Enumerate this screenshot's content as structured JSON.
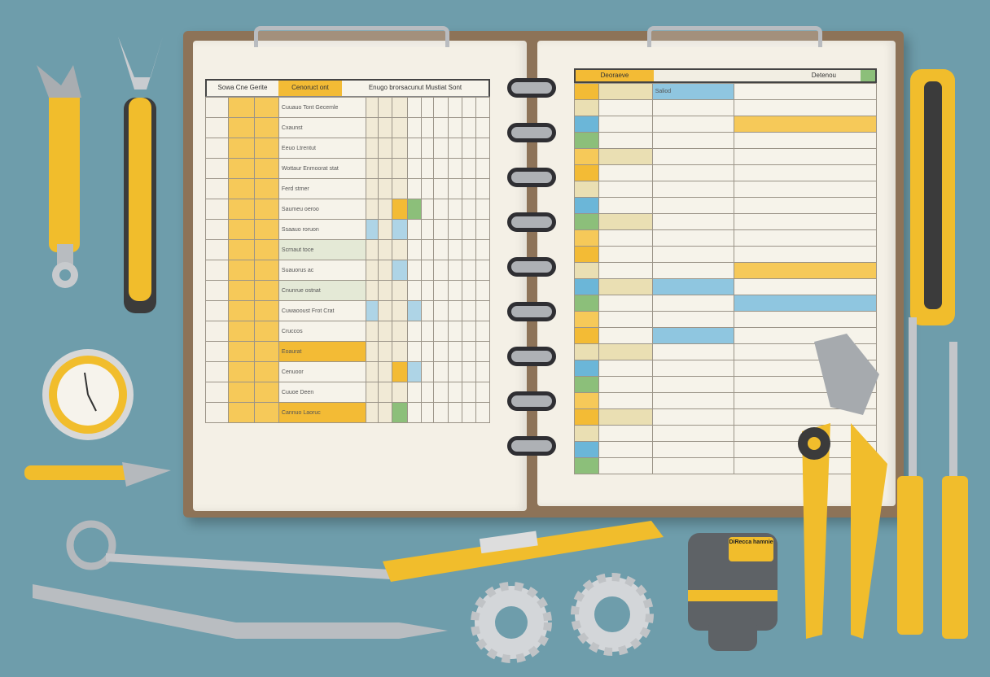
{
  "left_sheet": {
    "headers": [
      "Sowa Cne Gerite",
      "Cenoruct ont",
      "Enugo brorsacunut Mustiat Sont"
    ],
    "row_labels": [
      "Cuuauo Tont Gecemle",
      "Cxaunst",
      "Eeuo Ltrentut",
      "Wottaur Enmoorat stat",
      "Ferd stmer",
      "Saumeu oeroo",
      "Ssaauo roruon",
      "Scrnaut toce",
      "Suauorus ac",
      "Cnunrue ostnat",
      "Cuwaooust Frot Crat",
      "Cruccos",
      "Eoaurat",
      "Cenuoor",
      "Cuuoe Deen",
      "Cannuo Laoruc"
    ]
  },
  "right_sheet": {
    "headers": [
      "Deoraeve",
      "Detenou"
    ],
    "sub_label": "Saliod"
  },
  "tape_label": "DiRecca hamnie",
  "colors": {
    "background": "#6e9dab",
    "accent_yellow": "#f3bb35",
    "page": "#f4f0e6",
    "binder": "#8d7358",
    "blue": "#6bb6d8",
    "green": "#8cbf7a"
  }
}
